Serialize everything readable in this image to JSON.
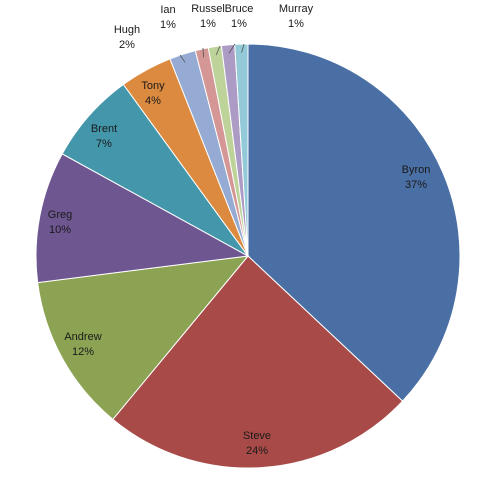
{
  "chart_data": {
    "type": "pie",
    "title": "",
    "slices": [
      {
        "name": "Byron",
        "value": 37,
        "label": "37%",
        "color": "#4a6fa5"
      },
      {
        "name": "Steve",
        "value": 24,
        "label": "24%",
        "color": "#a84a47"
      },
      {
        "name": "Andrew",
        "value": 12,
        "label": "12%",
        "color": "#8ba353"
      },
      {
        "name": "Greg",
        "value": 10,
        "label": "10%",
        "color": "#6e5690"
      },
      {
        "name": "Brent",
        "value": 7,
        "label": "7%",
        "color": "#4497ab"
      },
      {
        "name": "Tony",
        "value": 4,
        "label": "4%",
        "color": "#db8a3f"
      },
      {
        "name": "Hugh",
        "value": 2,
        "label": "2%",
        "color": "#95abd4"
      },
      {
        "name": "Ian",
        "value": 1,
        "label": "1%",
        "color": "#d49795"
      },
      {
        "name": "Russel",
        "value": 1,
        "label": "1%",
        "color": "#bdd39a"
      },
      {
        "name": "Bruce",
        "value": 1,
        "label": "1%",
        "color": "#ac9cc5"
      },
      {
        "name": "Murray",
        "value": 1,
        "label": "1%",
        "color": "#93c9d8"
      }
    ],
    "start_angle_deg": 0,
    "direction": "clockwise",
    "data_labels": "category-and-percent",
    "legend": "none"
  }
}
